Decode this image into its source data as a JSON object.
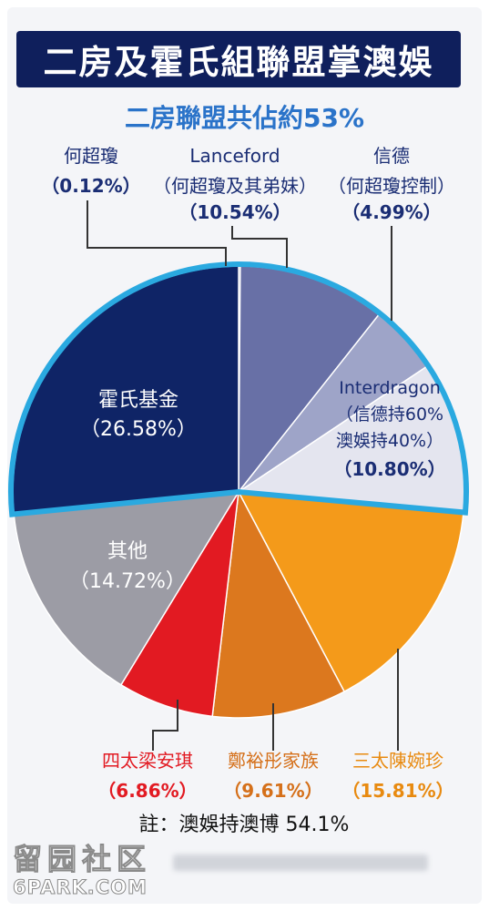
{
  "header": {
    "title": "二房及霍氏組聯盟掌澳娛",
    "subtitle": "二房聯盟共佔約53%"
  },
  "chart_data": {
    "type": "pie",
    "title": "二房及霍氏組聯盟掌澳娛",
    "subtitle": "二房聯盟共佔約53%",
    "slices": [
      {
        "label": "何超瓊",
        "value": 0.12,
        "value_label": "（0.12%）",
        "color": "#0f2466",
        "group": "二房聯盟"
      },
      {
        "label": "Lanceford",
        "note": "（何超瓊及其弟妹）",
        "value": 10.54,
        "value_label": "（10.54%）",
        "color": "#6870a6",
        "group": "二房聯盟"
      },
      {
        "label": "信德",
        "note": "（何超瓊控制）",
        "value": 4.99,
        "value_label": "（4.99%）",
        "color": "#9ea4c8",
        "group": "二房聯盟"
      },
      {
        "label": "Interdragon",
        "note": "（信德持60%",
        "note2": "澳娛持40%）",
        "value": 10.8,
        "value_label": "（10.80%）",
        "color": "#e4e5ef",
        "group": "二房聯盟"
      },
      {
        "label": "三太陳婉珍",
        "value": 15.81,
        "value_label": "（15.81%）",
        "color": "#f49a1a",
        "group": ""
      },
      {
        "label": "鄭裕彤家族",
        "value": 9.61,
        "value_label": "（9.61%）",
        "color": "#dc781e",
        "group": ""
      },
      {
        "label": "四太梁安琪",
        "value": 6.86,
        "value_label": "（6.86%）",
        "color": "#e21a22",
        "group": ""
      },
      {
        "label": "其他",
        "value": 14.72,
        "value_label": "（14.72%）",
        "color": "#9c9ca5",
        "group": ""
      },
      {
        "label": "霍氏基金",
        "value": 26.58,
        "value_label": "（26.58%）",
        "color": "#0f2466",
        "group": "二房聯盟"
      }
    ],
    "legend": "none",
    "alliance_outline_color": "#2aa9e0"
  },
  "footnote": "註：澳娛持澳博 54.1%",
  "watermark": {
    "cn": "留园社区",
    "en": "6PARK.COM"
  }
}
